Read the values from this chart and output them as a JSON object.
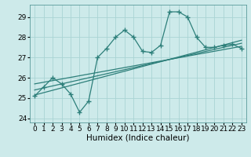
{
  "xlabel": "Humidex (Indice chaleur)",
  "bg_color": "#cdeaea",
  "line_color": "#2d7f7a",
  "xlim": [
    -0.5,
    23.5
  ],
  "ylim": [
    23.8,
    29.6
  ],
  "yticks": [
    24,
    25,
    26,
    27,
    28,
    29
  ],
  "xticks": [
    0,
    1,
    2,
    3,
    4,
    5,
    6,
    7,
    8,
    9,
    10,
    11,
    12,
    13,
    14,
    15,
    16,
    17,
    18,
    19,
    20,
    21,
    22,
    23
  ],
  "series1_x": [
    0,
    1,
    2,
    3,
    4,
    5,
    6,
    7,
    8,
    9,
    10,
    11,
    12,
    13,
    14,
    15,
    16,
    17,
    18,
    19,
    20,
    21,
    22,
    23
  ],
  "series1_y": [
    25.1,
    25.55,
    26.0,
    25.7,
    25.2,
    24.3,
    24.85,
    27.0,
    27.45,
    28.0,
    28.35,
    28.0,
    27.3,
    27.25,
    27.6,
    29.25,
    29.25,
    29.0,
    28.0,
    27.5,
    27.5,
    27.6,
    27.65,
    27.45
  ],
  "line2_x": [
    0,
    23
  ],
  "line2_y": [
    25.7,
    27.55
  ],
  "line3_x": [
    0,
    23
  ],
  "line3_y": [
    25.4,
    27.7
  ],
  "line4_x": [
    0,
    23
  ],
  "line4_y": [
    25.15,
    27.85
  ],
  "grid_color": "#aad4d4",
  "tick_fontsize": 6.5,
  "label_fontsize": 7.5
}
